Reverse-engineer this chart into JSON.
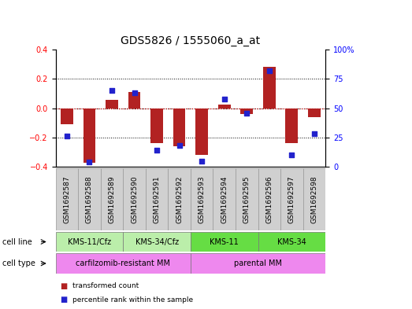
{
  "title": "GDS5826 / 1555060_a_at",
  "samples": [
    "GSM1692587",
    "GSM1692588",
    "GSM1692589",
    "GSM1692590",
    "GSM1692591",
    "GSM1692592",
    "GSM1692593",
    "GSM1692594",
    "GSM1692595",
    "GSM1692596",
    "GSM1692597",
    "GSM1692598"
  ],
  "bar_values": [
    -0.11,
    -0.37,
    0.055,
    0.11,
    -0.24,
    -0.26,
    -0.32,
    0.025,
    -0.04,
    0.28,
    -0.24,
    -0.06
  ],
  "dot_values": [
    26,
    4,
    65,
    63,
    14,
    18,
    5,
    58,
    46,
    82,
    10,
    28
  ],
  "ylim_left": [
    -0.4,
    0.4
  ],
  "ylim_right": [
    0,
    100
  ],
  "yticks_left": [
    -0.4,
    -0.2,
    0.0,
    0.2,
    0.4
  ],
  "yticks_right": [
    0,
    25,
    50,
    75,
    100
  ],
  "bar_color": "#b22222",
  "dot_color": "#2222cc",
  "grid_color": "#000000",
  "cell_line_groups": [
    {
      "label": "KMS-11/Cfz",
      "start": 0,
      "end": 2,
      "color": "#aaddaa"
    },
    {
      "label": "KMS-34/Cfz",
      "start": 3,
      "end": 5,
      "color": "#aaddaa"
    },
    {
      "label": "KMS-11",
      "start": 6,
      "end": 8,
      "color": "#55cc55"
    },
    {
      "label": "KMS-34",
      "start": 9,
      "end": 11,
      "color": "#55cc55"
    }
  ],
  "cell_type_groups": [
    {
      "label": "carfilzomib-resistant MM",
      "start": 0,
      "end": 5,
      "color": "#ee88ee"
    },
    {
      "label": "parental MM",
      "start": 6,
      "end": 11,
      "color": "#ee88ee"
    }
  ],
  "legend_items": [
    {
      "label": "transformed count",
      "color": "#b22222"
    },
    {
      "label": "percentile rank within the sample",
      "color": "#2222cc"
    }
  ],
  "sample_box_color": "#d0d0d0",
  "sample_box_edge": "#999999",
  "zero_line_color": "#cc0000",
  "label_fontsize": 7.0,
  "tick_fontsize": 7.0,
  "title_fontsize": 10
}
